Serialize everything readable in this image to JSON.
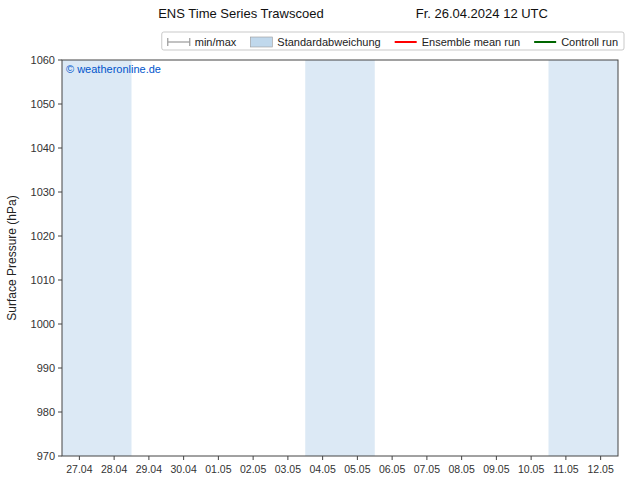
{
  "chart_data": {
    "type": "line",
    "title": "ENS Time Series Trawscoed",
    "subtitle": "Fr. 26.04.2024 12 UTC",
    "ylabel": "Surface Pressure (hPa)",
    "ylim": [
      970,
      1060
    ],
    "yticks": [
      970,
      980,
      990,
      1000,
      1010,
      1020,
      1030,
      1040,
      1050,
      1060
    ],
    "categories": [
      "27.04",
      "28.04",
      "29.04",
      "30.04",
      "01.05",
      "02.05",
      "03.05",
      "04.05",
      "05.05",
      "06.05",
      "07.05",
      "08.05",
      "09.05",
      "10.05",
      "11.05",
      "12.05"
    ],
    "bands": [
      {
        "from": "27.04",
        "to": "28.04",
        "color": "#dce9f5"
      },
      {
        "from": "04.05",
        "to": "05.05",
        "color": "#dce9f5"
      },
      {
        "from": "11.05",
        "to": "12.05",
        "color": "#dce9f5"
      }
    ],
    "annotations": [
      {
        "text": "© weatheronline.de",
        "color": "#0055cc"
      }
    ],
    "series": [
      {
        "name": "min/max",
        "color": "#999999",
        "type": "minmax"
      },
      {
        "name": "Standardabweichung",
        "color": "#c0d8ec",
        "type": "area"
      },
      {
        "name": "Ensemble mean run",
        "color": "#ff0000",
        "type": "line"
      },
      {
        "name": "Controll run",
        "color": "#006600",
        "type": "line"
      }
    ],
    "legend": "upper-right",
    "grid": false
  }
}
